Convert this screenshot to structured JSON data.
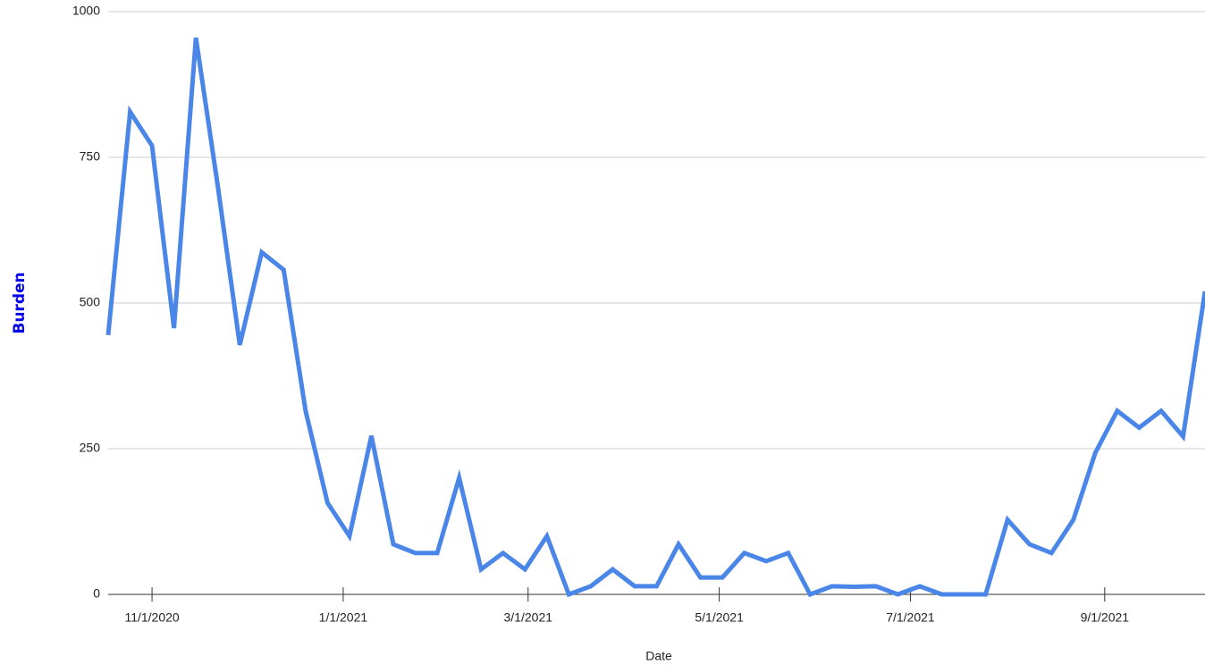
{
  "chart_data": {
    "type": "line",
    "x_label": "Date",
    "y_label": "Burden",
    "x": [
      "10/18/2020",
      "10/25/2020",
      "11/1/2020",
      "11/8/2020",
      "11/15/2020",
      "11/22/2020",
      "11/29/2020",
      "12/6/2020",
      "12/13/2020",
      "12/20/2020",
      "12/27/2020",
      "1/3/2021",
      "1/10/2021",
      "1/17/2021",
      "1/24/2021",
      "1/31/2021",
      "2/7/2021",
      "2/14/2021",
      "2/21/2021",
      "2/28/2021",
      "3/7/2021",
      "3/14/2021",
      "3/21/2021",
      "3/28/2021",
      "4/4/2021",
      "4/11/2021",
      "4/18/2021",
      "4/25/2021",
      "5/2/2021",
      "5/9/2021",
      "5/16/2021",
      "5/23/2021",
      "5/30/2021",
      "6/6/2021",
      "6/13/2021",
      "6/20/2021",
      "6/27/2021",
      "7/4/2021",
      "7/11/2021",
      "7/18/2021",
      "7/25/2021",
      "8/1/2021",
      "8/8/2021",
      "8/15/2021",
      "8/22/2021",
      "8/29/2021",
      "9/5/2021",
      "9/12/2021",
      "9/19/2021",
      "9/26/2021",
      "10/3/2021"
    ],
    "series": [
      {
        "name": "Burden",
        "color": "#4a86e8",
        "values": [
          445,
          828,
          770,
          457,
          955,
          700,
          428,
          587,
          557,
          315,
          157,
          100,
          272,
          86,
          71,
          71,
          200,
          43,
          71,
          43,
          100,
          0,
          14,
          43,
          14,
          14,
          86,
          29,
          29,
          71,
          57,
          71,
          0,
          14,
          13,
          14,
          0,
          14,
          0,
          0,
          0,
          128,
          86,
          71,
          128,
          243,
          315,
          286,
          315,
          271,
          520
        ]
      }
    ],
    "xlim": [
      "10/18/2020",
      "10/3/2021"
    ],
    "xticks": [
      "11/1/2020",
      "1/1/2021",
      "3/1/2021",
      "5/1/2021",
      "7/1/2021",
      "9/1/2021"
    ],
    "ylim": [
      0,
      1000
    ],
    "yticks": [
      0,
      250,
      500,
      750,
      1000
    ],
    "grid": true
  }
}
